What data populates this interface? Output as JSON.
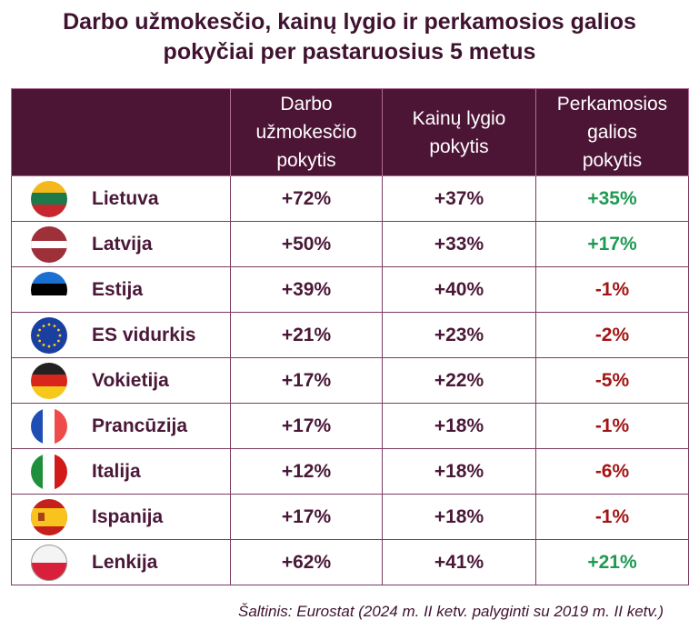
{
  "title_line1": "Darbo užmokesčio, kainų lygio ir perkamosios galios",
  "title_line2": "pokyčiai per pastaruosius 5 metus",
  "chart_data": {
    "type": "table",
    "title": "Darbo užmokesčio, kainų lygio ir perkamosios galios pokyčiai per pastaruosius 5 metus",
    "columns": [
      {
        "line1": "Darbo",
        "line2": "užmokesčio",
        "line3": "pokytis"
      },
      {
        "line1": "Kainų lygio",
        "line2": "pokytis",
        "line3": ""
      },
      {
        "line1": "Perkamosios",
        "line2": "galios",
        "line3": "pokytis"
      }
    ],
    "rows": [
      {
        "country": "Lietuva",
        "flag": "lithuania-flag-icon",
        "wage": "+72%",
        "price": "+37%",
        "power": "+35%",
        "wage_value": 72,
        "price_value": 37,
        "power_value": 35
      },
      {
        "country": "Latvija",
        "flag": "latvia-flag-icon",
        "wage": "+50%",
        "price": "+33%",
        "power": "+17%",
        "wage_value": 50,
        "price_value": 33,
        "power_value": 17
      },
      {
        "country": "Estija",
        "flag": "estonia-flag-icon",
        "wage": "+39%",
        "price": "+40%",
        "power": "-1%",
        "wage_value": 39,
        "price_value": 40,
        "power_value": -1
      },
      {
        "country": "ES vidurkis",
        "flag": "eu-flag-icon",
        "wage": "+21%",
        "price": "+23%",
        "power": "-2%",
        "wage_value": 21,
        "price_value": 23,
        "power_value": -2
      },
      {
        "country": "Vokietija",
        "flag": "germany-flag-icon",
        "wage": "+17%",
        "price": "+22%",
        "power": "-5%",
        "wage_value": 17,
        "price_value": 22,
        "power_value": -5
      },
      {
        "country": "Prancūzija",
        "flag": "france-flag-icon",
        "wage": "+17%",
        "price": "+18%",
        "power": "-1%",
        "wage_value": 17,
        "price_value": 18,
        "power_value": -1
      },
      {
        "country": "Italija",
        "flag": "italy-flag-icon",
        "wage": "+12%",
        "price": "+18%",
        "power": "-6%",
        "wage_value": 12,
        "price_value": 18,
        "power_value": -6
      },
      {
        "country": "Ispanija",
        "flag": "spain-flag-icon",
        "wage": "+17%",
        "price": "+18%",
        "power": "-1%",
        "wage_value": 17,
        "price_value": 18,
        "power_value": -1
      },
      {
        "country": "Lenkija",
        "flag": "poland-flag-icon",
        "wage": "+62%",
        "price": "+41%",
        "power": "+21%",
        "wage_value": 62,
        "price_value": 41,
        "power_value": 21
      }
    ],
    "colors": {
      "header_bg": "#4d1535",
      "text": "#4a1838",
      "positive": "#1e9a52",
      "negative": "#a31515"
    }
  },
  "source": "Šaltinis: Eurostat (2024 m. II ketv. palyginti su 2019 m. II ketv.)"
}
